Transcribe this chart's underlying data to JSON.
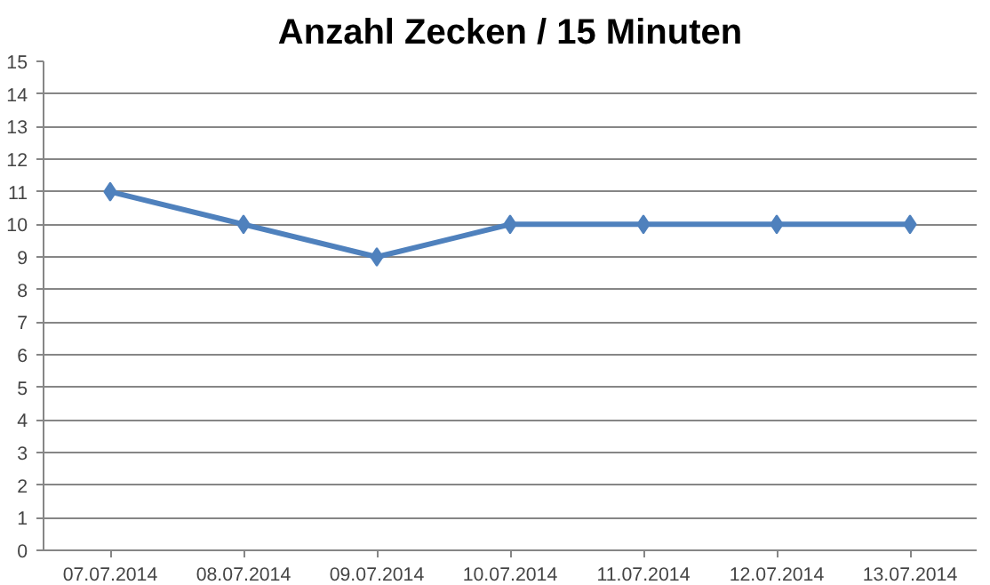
{
  "chart_data": {
    "type": "line",
    "title": "Anzahl Zecken / 15 Minuten",
    "categories": [
      "07.07.2014",
      "08.07.2014",
      "09.07.2014",
      "10.07.2014",
      "11.07.2014",
      "12.07.2014",
      "13.07.2014"
    ],
    "series": [
      {
        "color": "#4f81bd",
        "values": [
          11,
          10,
          9,
          10,
          10,
          10,
          10
        ]
      }
    ],
    "ylim": [
      0,
      15
    ],
    "yticks": [
      0,
      1,
      2,
      3,
      4,
      5,
      6,
      7,
      8,
      9,
      10,
      11,
      12,
      13,
      14,
      15
    ],
    "grid": "y",
    "marker": "diamond",
    "line_style": "solid"
  }
}
